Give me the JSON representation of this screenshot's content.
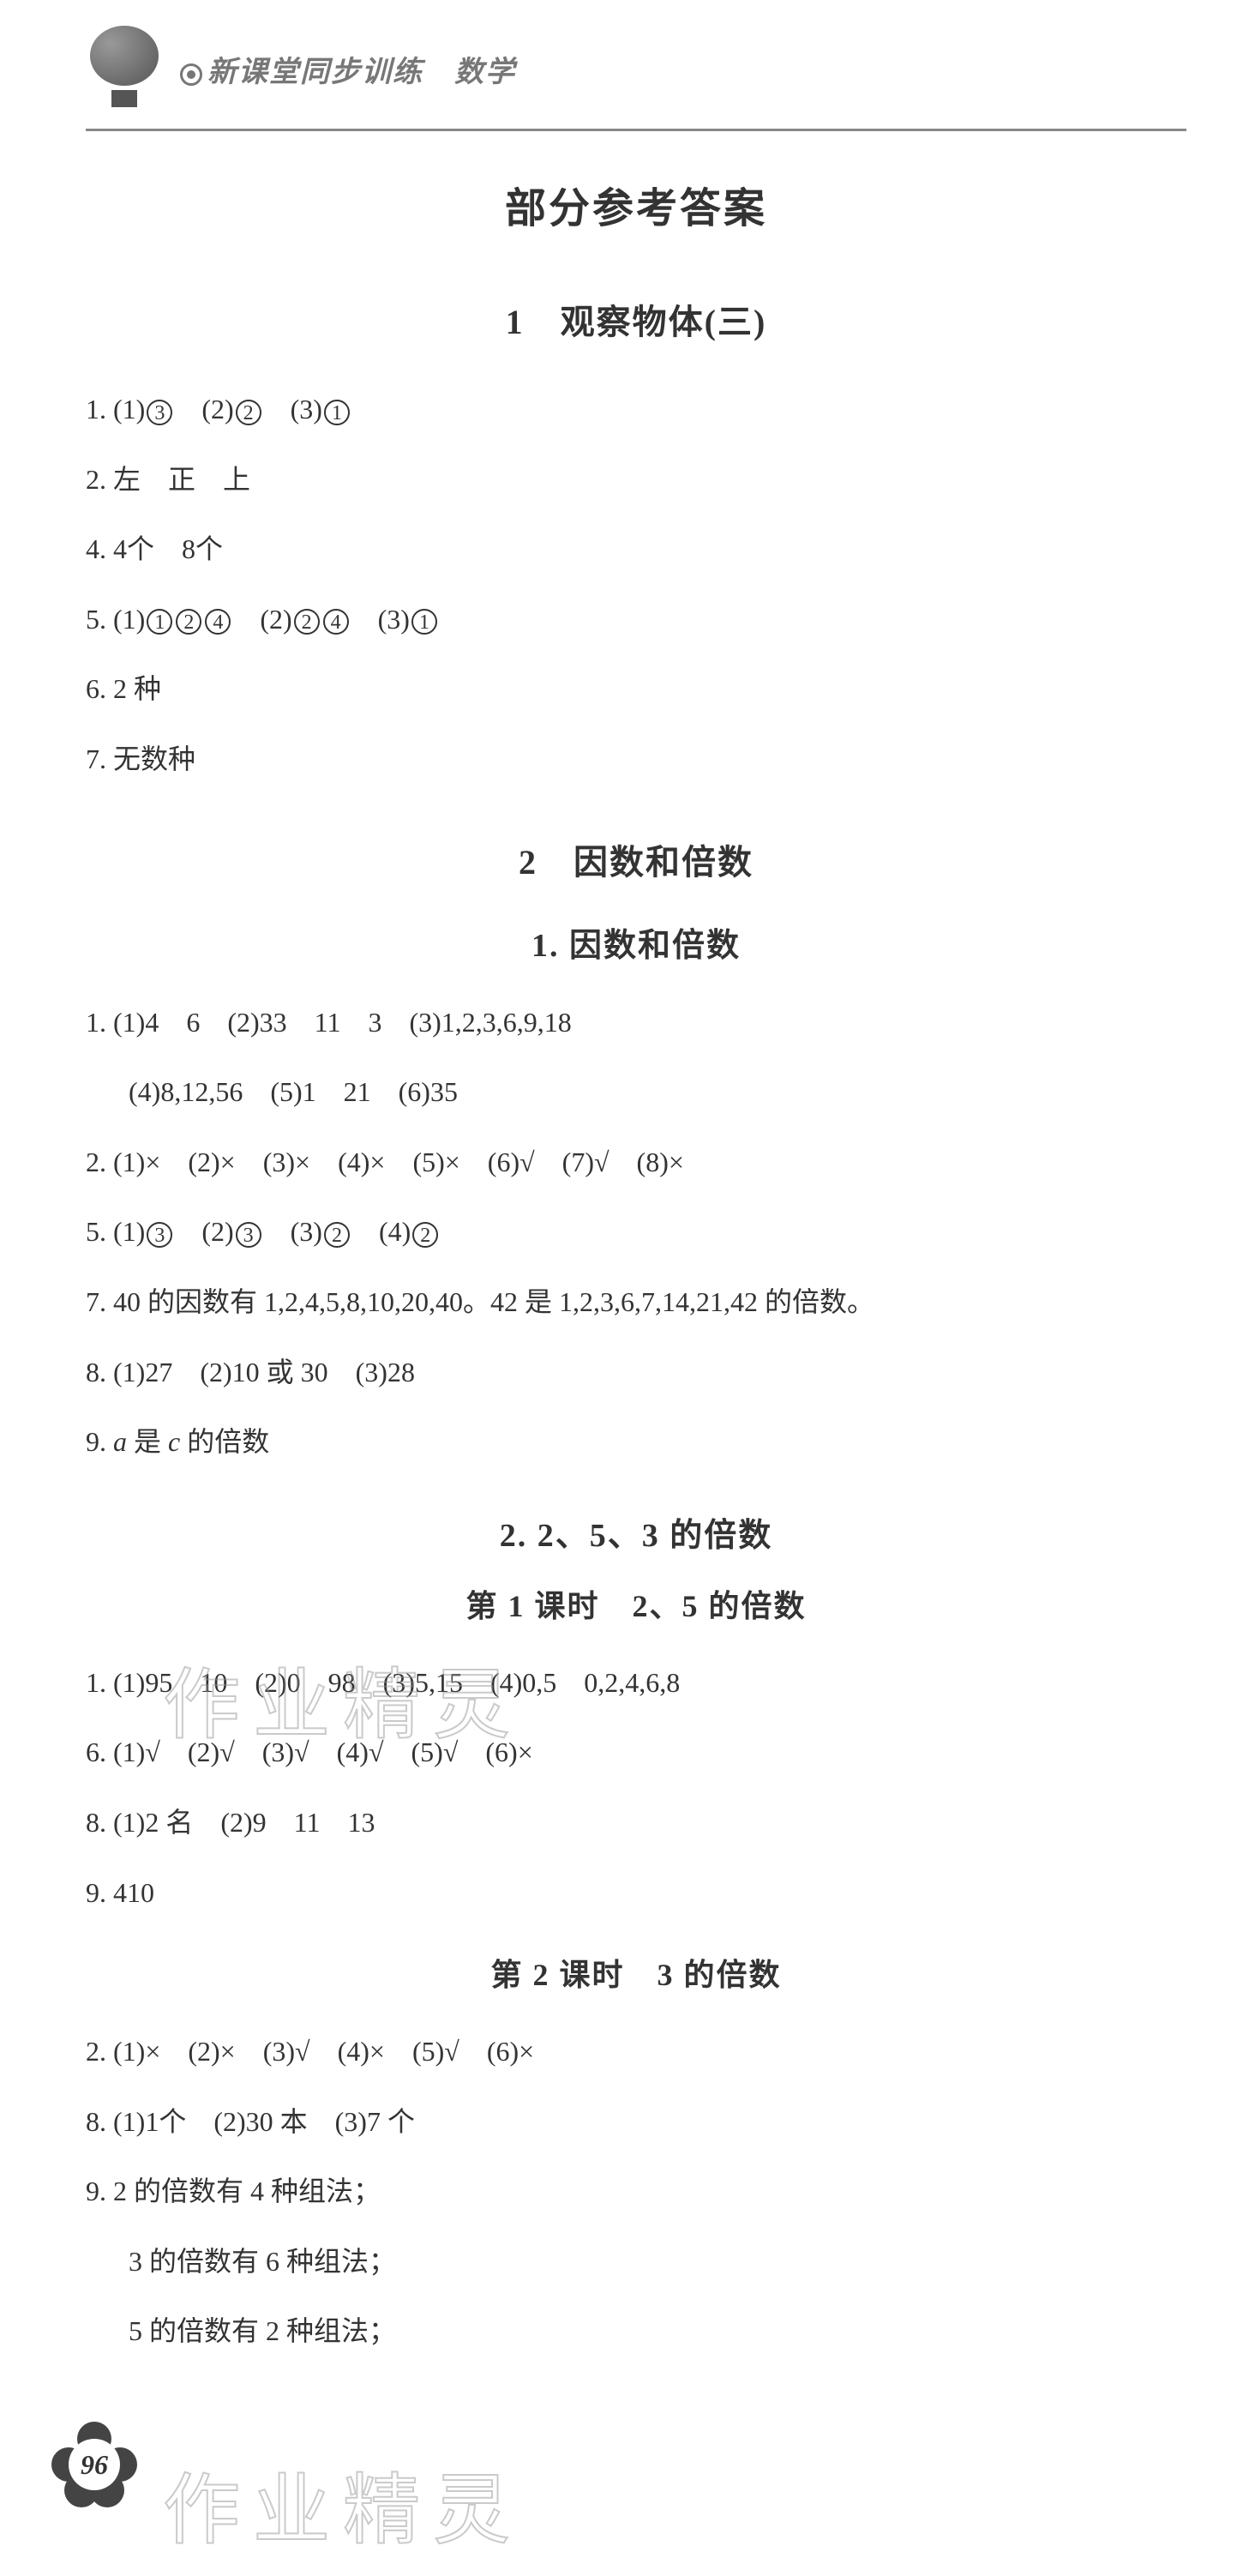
{
  "header": {
    "book_title": "新课堂同步训练",
    "subject": "数学"
  },
  "page_title": "部分参考答案",
  "page_number": "96",
  "watermark_text": "作业精灵",
  "sections": [
    {
      "title": "1　观察物体(三)",
      "lines": [
        {
          "prefix": "1.",
          "content": "(1)③　(2)②　(3)①",
          "circled": [
            [
              "③"
            ],
            [
              "②"
            ],
            [
              "①"
            ]
          ]
        },
        {
          "prefix": "2.",
          "content": "左　正　上"
        },
        {
          "prefix": "4.",
          "content": "4个　8个"
        },
        {
          "prefix": "5.",
          "content": "(1)①②④　(2)②④　(3)①",
          "circled": [
            [
              "①",
              "②",
              "④"
            ],
            [
              "②",
              "④"
            ],
            [
              "①"
            ]
          ]
        },
        {
          "prefix": "6.",
          "content": "2 种"
        },
        {
          "prefix": "7.",
          "content": "无数种"
        }
      ]
    },
    {
      "title": "2　因数和倍数",
      "subsections": [
        {
          "title": "1. 因数和倍数",
          "lines": [
            {
              "prefix": "1.",
              "content": "(1)4　6　(2)33　11　3　(3)1,2,3,6,9,18"
            },
            {
              "indent": true,
              "content": "(4)8,12,56　(5)1　21　(6)35"
            },
            {
              "prefix": "2.",
              "content": "(1)×　(2)×　(3)×　(4)×　(5)×　(6)√　(7)√　(8)×"
            },
            {
              "prefix": "5.",
              "content": "(1)③　(2)③　(3)②　(4)②",
              "circled": [
                [
                  "③"
                ],
                [
                  "③"
                ],
                [
                  "②"
                ],
                [
                  "②"
                ]
              ]
            },
            {
              "prefix": "7.",
              "content": "40 的因数有 1,2,4,5,8,10,20,40。42 是 1,2,3,6,7,14,21,42 的倍数。"
            },
            {
              "prefix": "8.",
              "content": "(1)27　(2)10 或 30　(3)28"
            },
            {
              "prefix": "9.",
              "content_html": "<i>a</i> 是 <i>c</i> 的倍数"
            }
          ]
        },
        {
          "title": "2. 2、5、3 的倍数",
          "lessons": [
            {
              "title": "第 1 课时　2、5 的倍数",
              "lines": [
                {
                  "prefix": "1.",
                  "content": "(1)95　10　(2)0　98　(3)5,15　(4)0,5　0,2,4,6,8"
                },
                {
                  "prefix": "6.",
                  "content": "(1)√　(2)√　(3)√　(4)√　(5)√　(6)×"
                },
                {
                  "prefix": "8.",
                  "content": "(1)2 名　(2)9　11　13"
                },
                {
                  "prefix": "9.",
                  "content": "410"
                }
              ]
            },
            {
              "title": "第 2 课时　3 的倍数",
              "lines": [
                {
                  "prefix": "2.",
                  "content": "(1)×　(2)×　(3)√　(4)×　(5)√　(6)×"
                },
                {
                  "prefix": "8.",
                  "content": "(1)1个　(2)30 本　(3)7 个"
                },
                {
                  "prefix": "9.",
                  "content": "2 的倍数有 4 种组法；"
                },
                {
                  "indent": true,
                  "content": "3 的倍数有 6 种组法；"
                },
                {
                  "indent": true,
                  "content": "5 的倍数有 2 种组法；"
                }
              ]
            }
          ]
        }
      ]
    }
  ],
  "colors": {
    "text": "#333333",
    "header_text": "#777777",
    "background": "#ffffff",
    "watermark": "rgba(180,180,180,0.4)",
    "divider": "#888888"
  },
  "typography": {
    "page_title_fontsize": 48,
    "section_title_fontsize": 40,
    "subsection_title_fontsize": 38,
    "lesson_title_fontsize": 36,
    "body_fontsize": 32,
    "line_height": 2.3
  }
}
